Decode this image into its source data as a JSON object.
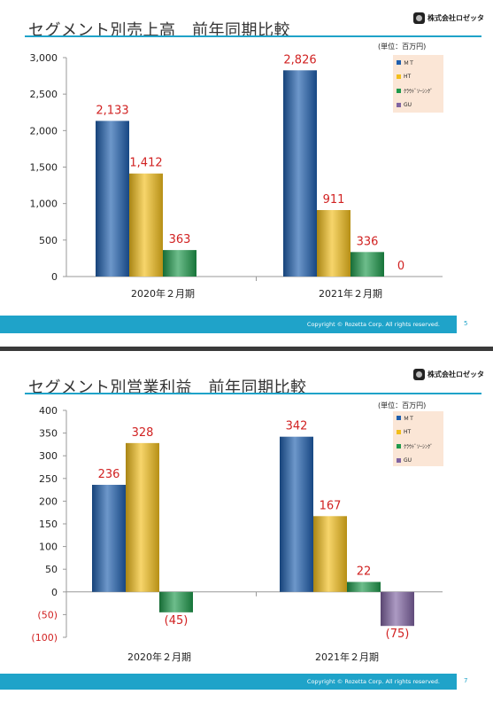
{
  "slides": [
    {
      "title": "セグメント別売上高　前年同期比較",
      "company": "株式会社ロゼッタ",
      "unit": "(単位：百万円)",
      "footer": "Copyright © Rozetta Corp. All rights reserved.",
      "page": "5"
    },
    {
      "title": "セグメント別営業利益　前年同期比較",
      "company": "株式会社ロゼッタ",
      "unit": "(単位：百万円)",
      "footer": "Copyright © Rozetta Corp. All rights reserved.",
      "page": "7"
    }
  ],
  "colors": {
    "accent": "#1fa3c9",
    "MT": "#1f5fae",
    "HT": "#f2be1c",
    "cloud": "#1f9a4c",
    "GU": "#8064a2",
    "label": "#d12222"
  },
  "chart_data": [
    {
      "type": "bar",
      "title": "セグメント別売上高　前年同期比較",
      "categories": [
        "2020年２月期",
        "2021年２月期"
      ],
      "series": [
        {
          "name": "ＭＴ",
          "values": [
            2133,
            2826
          ],
          "labels": [
            "2,133",
            "2,826"
          ]
        },
        {
          "name": "HT",
          "values": [
            1412,
            911
          ],
          "labels": [
            "1,412",
            "911"
          ]
        },
        {
          "name": "ｸﾗｳﾄﾞｿｰｼﾝｸﾞ",
          "values": [
            363,
            336
          ],
          "labels": [
            "363",
            "336"
          ]
        },
        {
          "name": "GU",
          "values": [
            null,
            0
          ],
          "labels": [
            "",
            "0"
          ]
        }
      ],
      "ylim": [
        0,
        3000
      ],
      "yticks": [
        "0",
        "500",
        "1,000",
        "1,500",
        "2,000",
        "2,500",
        "3,000"
      ],
      "ytick_values": [
        0,
        500,
        1000,
        1500,
        2000,
        2500,
        3000
      ],
      "legend": "top-right",
      "grid": false
    },
    {
      "type": "bar",
      "title": "セグメント別営業利益　前年同期比較",
      "categories": [
        "2020年２月期",
        "2021年２月期"
      ],
      "series": [
        {
          "name": "ＭＴ",
          "values": [
            236,
            342
          ],
          "labels": [
            "236",
            "342"
          ]
        },
        {
          "name": "HT",
          "values": [
            328,
            167
          ],
          "labels": [
            "328",
            "167"
          ]
        },
        {
          "name": "ｸﾗｳﾄﾞｿｰｼﾝｸﾞ",
          "values": [
            -45,
            22
          ],
          "labels": [
            "(45)",
            "22"
          ]
        },
        {
          "name": "GU",
          "values": [
            null,
            -75
          ],
          "labels": [
            "",
            "(75)"
          ]
        }
      ],
      "ylim": [
        -100,
        400
      ],
      "yticks": [
        "(100)",
        "(50)",
        "0",
        "50",
        "100",
        "150",
        "200",
        "250",
        "300",
        "350",
        "400"
      ],
      "ytick_values": [
        -100,
        -50,
        0,
        50,
        100,
        150,
        200,
        250,
        300,
        350,
        400
      ],
      "legend": "top-right",
      "grid": false
    }
  ]
}
